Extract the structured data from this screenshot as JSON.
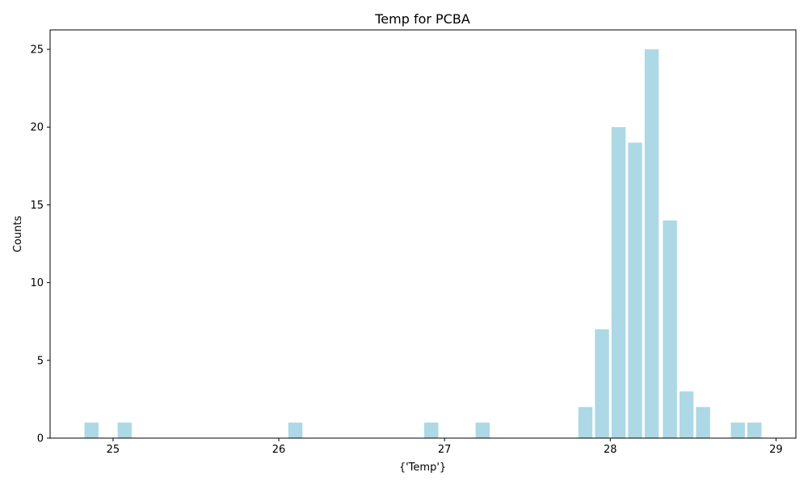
{
  "chart_data": {
    "type": "bar",
    "title": "Temp for PCBA",
    "xlabel": "{'Temp'}",
    "ylabel": "Counts",
    "bar_width": 0.085,
    "bar_color": "#add8e6",
    "xlim": [
      24.62,
      29.12
    ],
    "ylim": [
      0,
      26.25
    ],
    "xticks": [
      25,
      26,
      27,
      28,
      29
    ],
    "yticks": [
      0,
      5,
      10,
      15,
      20,
      25
    ],
    "grid": false,
    "bars": [
      {
        "x": 24.87,
        "y": 1
      },
      {
        "x": 25.07,
        "y": 1
      },
      {
        "x": 26.1,
        "y": 1
      },
      {
        "x": 26.92,
        "y": 1
      },
      {
        "x": 27.23,
        "y": 1
      },
      {
        "x": 27.85,
        "y": 2
      },
      {
        "x": 27.95,
        "y": 7
      },
      {
        "x": 28.05,
        "y": 20
      },
      {
        "x": 28.15,
        "y": 19
      },
      {
        "x": 28.25,
        "y": 25
      },
      {
        "x": 28.36,
        "y": 14
      },
      {
        "x": 28.46,
        "y": 3
      },
      {
        "x": 28.56,
        "y": 2
      },
      {
        "x": 28.77,
        "y": 1
      },
      {
        "x": 28.87,
        "y": 1
      }
    ]
  }
}
